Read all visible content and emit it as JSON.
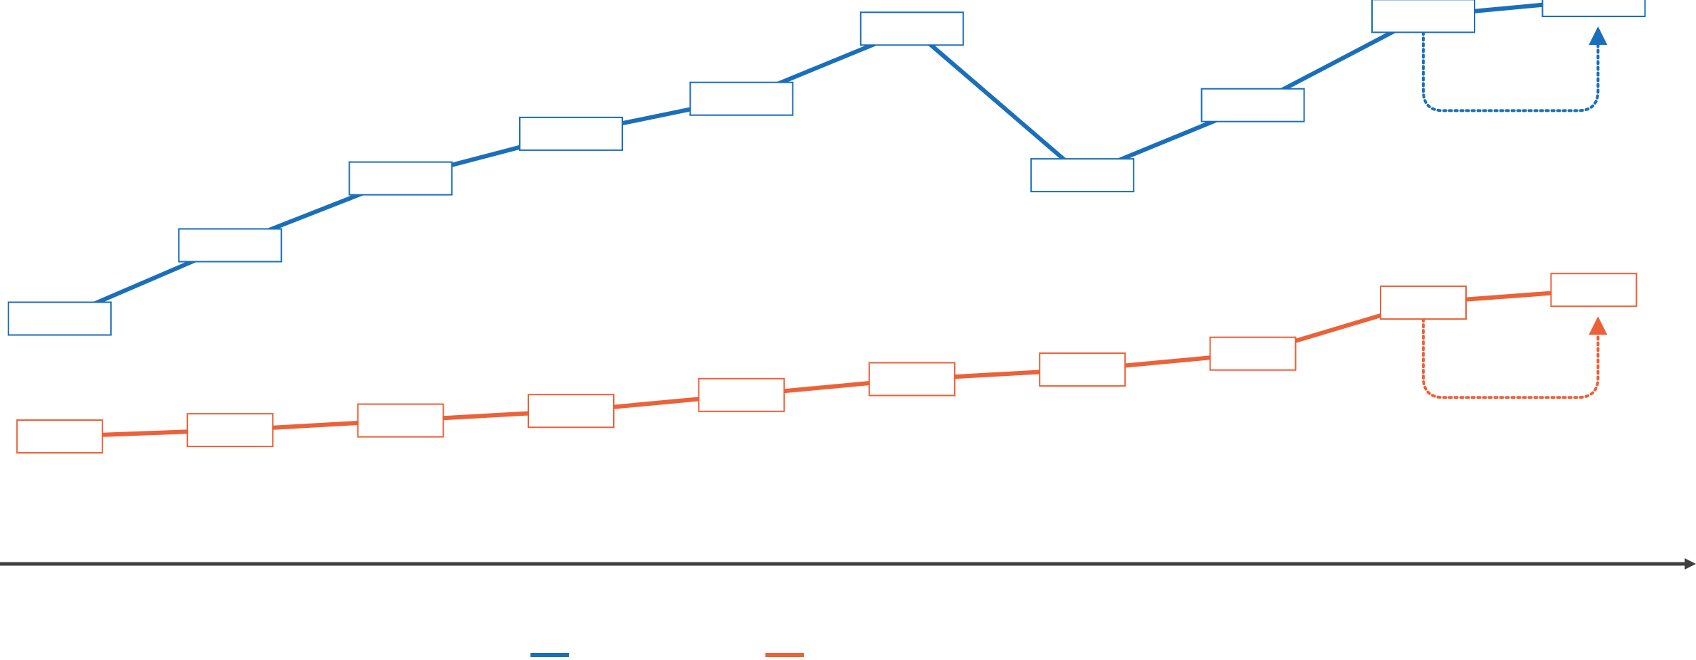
{
  "chart_data": {
    "type": "line",
    "title": "",
    "xlabel": "",
    "ylabel": "",
    "x": [
      1,
      2,
      3,
      4,
      5,
      6,
      7,
      8,
      9,
      10
    ],
    "xlim": [
      0.65,
      10.6
    ],
    "ylim": [
      -0.25,
      1.52
    ],
    "grid": false,
    "legend_position": "bottom-center",
    "series": [
      {
        "name": "",
        "color": "#1a6fba",
        "values": [
          0.52,
          0.75,
          0.96,
          1.1,
          1.21,
          1.43,
          0.97,
          1.19,
          1.47,
          1.52
        ],
        "data_labels": [
          "",
          "",
          "",
          "",
          "",
          "",
          "",
          "",
          "",
          ""
        ]
      },
      {
        "name": "",
        "color": "#ec6138",
        "values": [
          0.15,
          0.17,
          0.2,
          0.23,
          0.28,
          0.33,
          0.36,
          0.41,
          0.57,
          0.61
        ],
        "data_labels": [
          "",
          "",
          "",
          "",
          "",
          "",
          "",
          "",
          "",
          ""
        ]
      }
    ],
    "annotations": [
      {
        "type": "dotted-arrow",
        "series": 0,
        "from_index": 8,
        "to_index": 9
      },
      {
        "type": "dotted-arrow",
        "series": 1,
        "from_index": 8,
        "to_index": 9
      }
    ],
    "axis_color": "#404040"
  }
}
